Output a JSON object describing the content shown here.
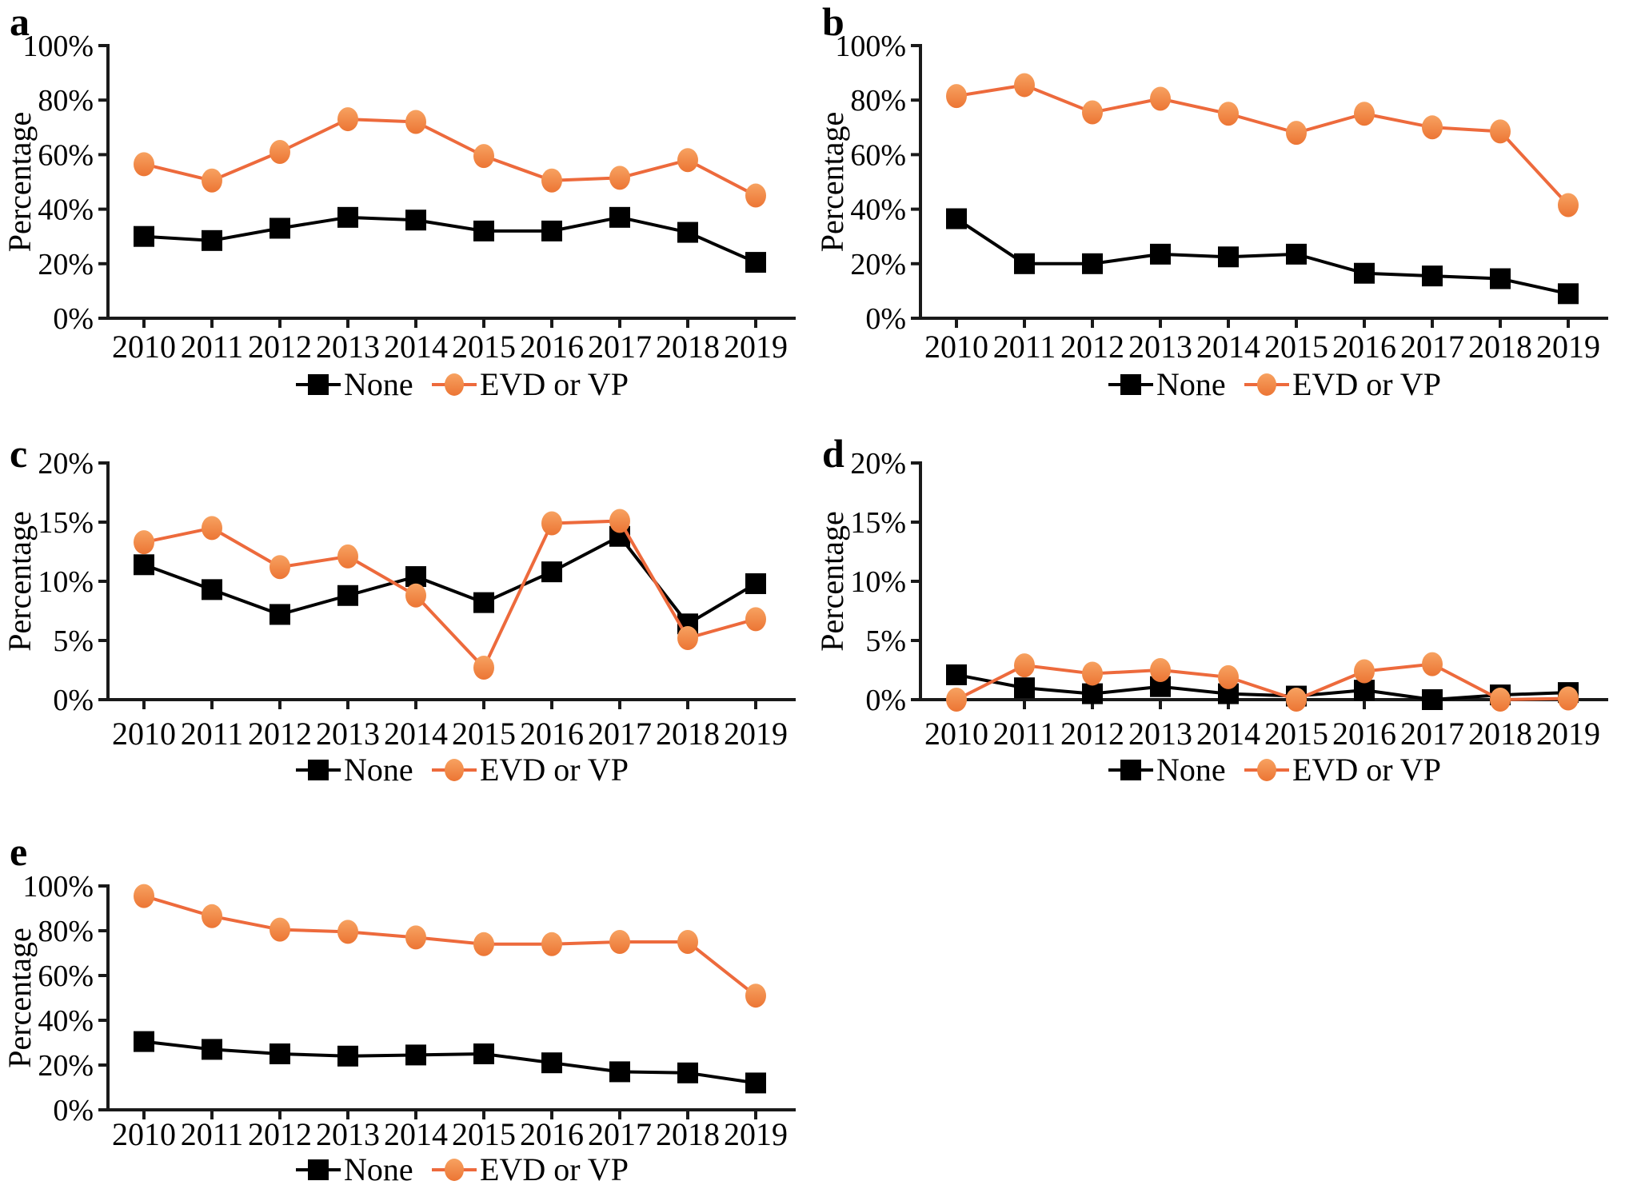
{
  "figure": {
    "background": "#ffffff",
    "y_axis_title": "Percentage"
  },
  "colors": {
    "axis": "#1a1a1a",
    "text": "#000000",
    "none_series": "#000000",
    "evd_line": "#ED6A3C",
    "evd_marker_top": "#F7A261",
    "evd_marker_bottom": "#EC7534"
  },
  "legend": {
    "items": [
      {
        "label": "None",
        "marker": "black-square"
      },
      {
        "label": "EVD or VP",
        "marker": "orange-circle"
      }
    ]
  },
  "chart_data": [
    {
      "panel_label": "a",
      "type": "line",
      "x": [
        "2010",
        "2011",
        "2012",
        "2013",
        "2014",
        "2015",
        "2016",
        "2017",
        "2018",
        "2019"
      ],
      "xlabel": "",
      "ylabel": "Percentage",
      "ylim": [
        0,
        100
      ],
      "yticks": [
        0,
        20,
        40,
        60,
        80,
        100
      ],
      "ytick_suffix": "%",
      "grid": false,
      "legend_position": "bottom",
      "series": [
        {
          "name": "None",
          "marker": "square",
          "values": [
            30,
            28.5,
            33,
            37,
            36,
            32,
            32,
            37,
            31.5,
            20.5
          ]
        },
        {
          "name": "EVD or VP",
          "marker": "circle",
          "values": [
            56.5,
            50.5,
            61,
            73,
            72,
            59.5,
            50.5,
            51.5,
            58,
            45
          ]
        }
      ]
    },
    {
      "panel_label": "b",
      "type": "line",
      "x": [
        "2010",
        "2011",
        "2012",
        "2013",
        "2014",
        "2015",
        "2016",
        "2017",
        "2018",
        "2019"
      ],
      "xlabel": "",
      "ylabel": "Percentage",
      "ylim": [
        0,
        100
      ],
      "yticks": [
        0,
        20,
        40,
        60,
        80,
        100
      ],
      "ytick_suffix": "%",
      "grid": false,
      "legend_position": "bottom",
      "series": [
        {
          "name": "None",
          "marker": "square",
          "values": [
            36.5,
            20,
            20,
            23.5,
            22.5,
            23.5,
            16.5,
            15.5,
            14.5,
            9
          ]
        },
        {
          "name": "EVD or VP",
          "marker": "circle",
          "values": [
            81.5,
            85.5,
            75.5,
            80.5,
            75,
            68,
            75,
            70,
            68.5,
            41.5
          ]
        }
      ]
    },
    {
      "panel_label": "c",
      "type": "line",
      "x": [
        "2010",
        "2011",
        "2012",
        "2013",
        "2014",
        "2015",
        "2016",
        "2017",
        "2018",
        "2019"
      ],
      "xlabel": "",
      "ylabel": "Percentage",
      "ylim": [
        0,
        20
      ],
      "yticks": [
        0,
        5,
        10,
        15,
        20
      ],
      "ytick_suffix": "%",
      "grid": false,
      "legend_position": "bottom",
      "series": [
        {
          "name": "None",
          "marker": "square",
          "values": [
            11.4,
            9.3,
            7.2,
            8.8,
            10.4,
            8.2,
            10.8,
            13.8,
            6.4,
            9.8
          ]
        },
        {
          "name": "EVD or VP",
          "marker": "circle",
          "values": [
            13.3,
            14.5,
            11.2,
            12.1,
            8.8,
            2.7,
            14.9,
            15.1,
            5.2,
            6.8
          ]
        }
      ]
    },
    {
      "panel_label": "d",
      "type": "line",
      "x": [
        "2010",
        "2011",
        "2012",
        "2013",
        "2014",
        "2015",
        "2016",
        "2017",
        "2018",
        "2019"
      ],
      "xlabel": "",
      "ylabel": "Percentage",
      "ylim": [
        0,
        20
      ],
      "yticks": [
        0,
        5,
        10,
        15,
        20
      ],
      "ytick_suffix": "%",
      "grid": false,
      "legend_position": "bottom",
      "series": [
        {
          "name": "None",
          "marker": "square",
          "values": [
            2.1,
            1.0,
            0.5,
            1.1,
            0.5,
            0.3,
            0.8,
            0,
            0.4,
            0.6
          ]
        },
        {
          "name": "EVD or VP",
          "marker": "circle",
          "values": [
            0,
            2.9,
            2.2,
            2.5,
            1.9,
            0,
            2.4,
            3.0,
            0,
            0.1
          ]
        }
      ]
    },
    {
      "panel_label": "e",
      "type": "line",
      "x": [
        "2010",
        "2011",
        "2012",
        "2013",
        "2014",
        "2015",
        "2016",
        "2017",
        "2018",
        "2019"
      ],
      "xlabel": "",
      "ylabel": "Percentage",
      "ylim": [
        0,
        100
      ],
      "yticks": [
        0,
        20,
        40,
        60,
        80,
        100
      ],
      "ytick_suffix": "%",
      "grid": false,
      "legend_position": "bottom",
      "series": [
        {
          "name": "None",
          "marker": "square",
          "values": [
            30.5,
            27,
            25,
            24,
            24.5,
            25,
            21,
            17,
            16.5,
            12
          ]
        },
        {
          "name": "EVD or VP",
          "marker": "circle",
          "values": [
            95.5,
            86.5,
            80.5,
            79.5,
            77,
            74,
            74,
            75,
            75,
            51
          ]
        }
      ]
    }
  ]
}
